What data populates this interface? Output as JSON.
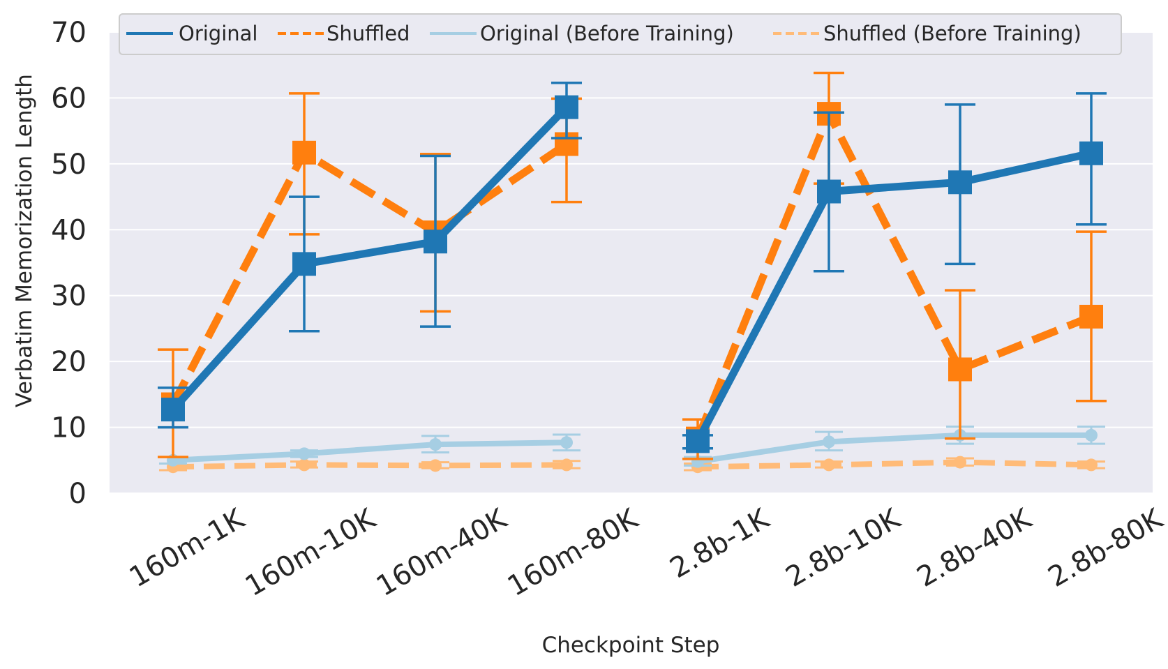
{
  "chart_data": {
    "type": "line",
    "title": "",
    "xlabel": "Checkpoint Step",
    "ylabel": "Verbatim Memorization Length",
    "ylim": [
      0,
      70
    ],
    "yticks": [
      0,
      10,
      20,
      30,
      40,
      50,
      60,
      70
    ],
    "categories": [
      "160m-1K",
      "160m-10K",
      "160m-40K",
      "160m-80K",
      "2.8b-1K",
      "2.8b-10K",
      "2.8b-40K",
      "2.8b-80K"
    ],
    "groups": [
      [
        0,
        1,
        2,
        3
      ],
      [
        4,
        5,
        6,
        7
      ]
    ],
    "grid": true,
    "legend_position": "top",
    "series": [
      {
        "name": "Shuffled (Before Training)",
        "color": "#ffbb78",
        "style": "dashed",
        "marker": "circle",
        "values": [
          4.0,
          4.3,
          4.2,
          4.3,
          4.0,
          4.3,
          4.7,
          4.3
        ],
        "err_low": [
          3.5,
          3.9,
          3.8,
          3.8,
          3.5,
          3.9,
          4.2,
          3.8
        ],
        "err_high": [
          4.5,
          4.8,
          4.7,
          4.9,
          4.5,
          4.8,
          5.3,
          4.8
        ]
      },
      {
        "name": "Original (Before Training)",
        "color": "#a6cee3",
        "style": "solid",
        "marker": "circle",
        "values": [
          5.0,
          6.0,
          7.4,
          7.7,
          4.8,
          7.8,
          8.8,
          8.8
        ],
        "err_low": [
          4.5,
          5.5,
          6.2,
          6.5,
          4.2,
          6.5,
          7.5,
          7.5
        ],
        "err_high": [
          5.5,
          6.5,
          8.7,
          8.9,
          5.5,
          9.3,
          10.1,
          10.1
        ]
      },
      {
        "name": "Shuffled",
        "color": "#ff7f0e",
        "style": "dashed",
        "marker": "square",
        "values": [
          13.5,
          51.7,
          39.6,
          53.0,
          8.3,
          57.6,
          18.8,
          26.8
        ],
        "err_low": [
          5.5,
          39.3,
          27.6,
          44.2,
          5.2,
          47.0,
          8.3,
          14.0
        ],
        "err_high": [
          21.8,
          60.7,
          51.5,
          59.9,
          11.2,
          63.8,
          30.8,
          39.7
        ]
      },
      {
        "name": "Original",
        "color": "#1f77b4",
        "style": "solid",
        "marker": "square",
        "values": [
          12.7,
          34.8,
          38.2,
          58.6,
          7.9,
          45.8,
          47.2,
          51.6
        ],
        "err_low": [
          10.0,
          24.6,
          25.3,
          53.9,
          6.8,
          33.7,
          34.8,
          40.8
        ],
        "err_high": [
          16.0,
          45.0,
          51.2,
          62.3,
          8.8,
          57.8,
          59.0,
          60.7
        ]
      }
    ],
    "legend": [
      "Original",
      "Shuffled",
      "Original (Before Training)",
      "Shuffled (Before Training)"
    ]
  }
}
